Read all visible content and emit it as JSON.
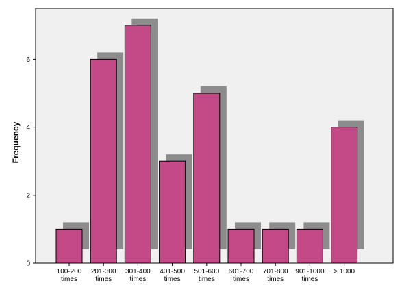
{
  "chart_data": {
    "type": "bar",
    "title": "",
    "xlabel": "",
    "ylabel": "Frequency",
    "ylim": [
      0,
      7.5
    ],
    "yticks": [
      0,
      2,
      4,
      6
    ],
    "grid": false,
    "bar_style": "3d-shadow",
    "categories": [
      [
        "100-200",
        "times"
      ],
      [
        "201-300",
        "times"
      ],
      [
        "301-400",
        "times"
      ],
      [
        "401-500",
        "times"
      ],
      [
        "501-600",
        "times"
      ],
      [
        "601-700",
        "times"
      ],
      [
        "701-800",
        "times"
      ],
      [
        "901-1000",
        "times"
      ],
      [
        "> 1000"
      ]
    ],
    "values": [
      1,
      6,
      7,
      3,
      5,
      1,
      1,
      1,
      4
    ],
    "colors": {
      "bar": "#c44a87",
      "shadow": "#8c8c8c",
      "plot_background": "#f0f0f0",
      "border": "#000000"
    }
  }
}
